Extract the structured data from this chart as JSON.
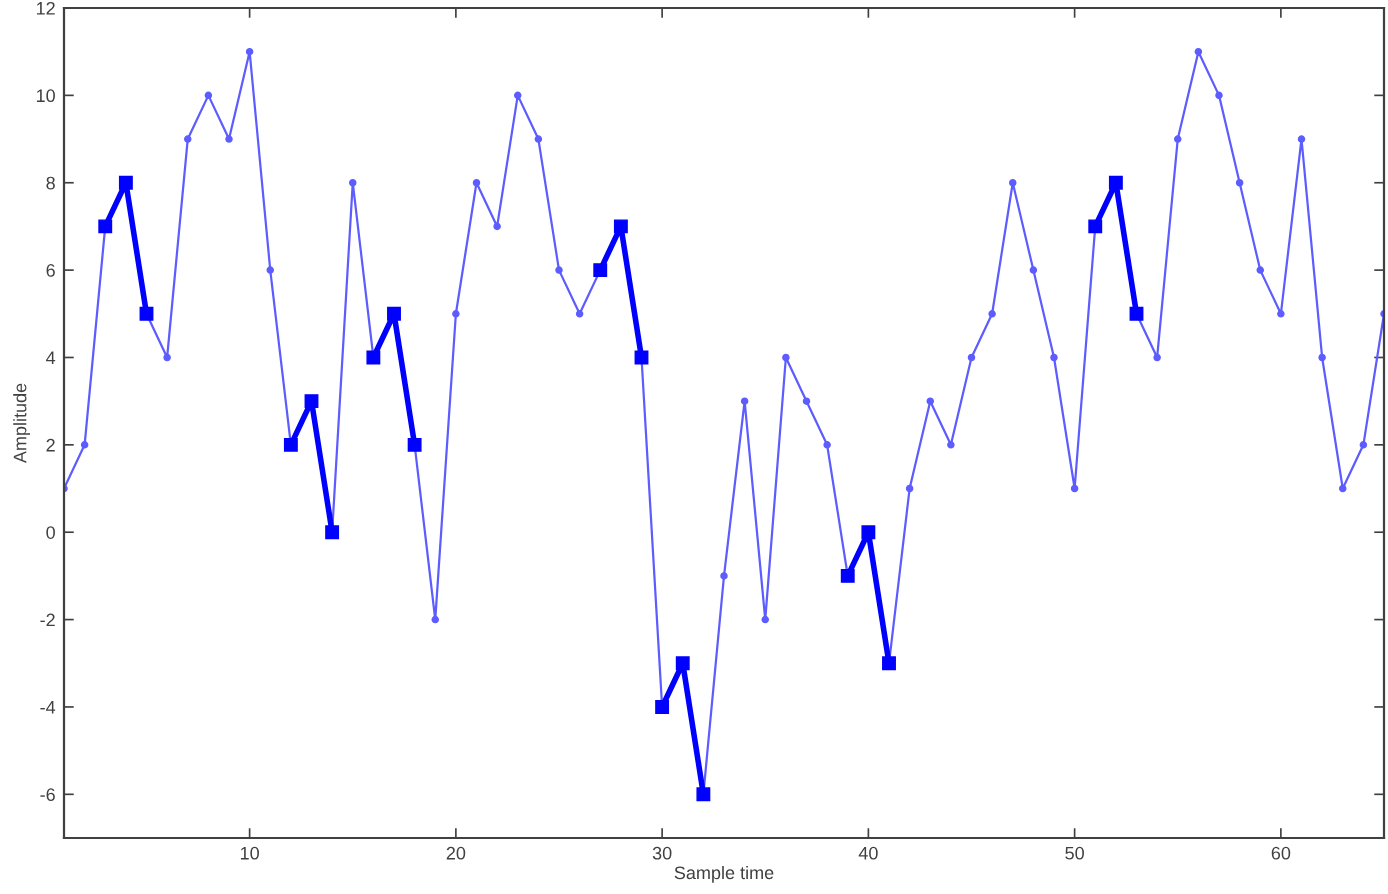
{
  "chart_data": {
    "type": "line",
    "xlabel": "Sample time",
    "ylabel": "Amplitude",
    "x": [
      1,
      2,
      3,
      4,
      5,
      6,
      7,
      8,
      9,
      10,
      11,
      12,
      13,
      14,
      15,
      16,
      17,
      18,
      19,
      20,
      21,
      22,
      23,
      24,
      25,
      26,
      27,
      28,
      29,
      30,
      31,
      32,
      33,
      34,
      35,
      36,
      37,
      38,
      39,
      40,
      41,
      42,
      43,
      44,
      45,
      46,
      47,
      48,
      49,
      50,
      51,
      52,
      53,
      54,
      55,
      56,
      57,
      58,
      59,
      60,
      61,
      62,
      63,
      64,
      65
    ],
    "xlim": [
      1,
      65
    ],
    "xticks": [
      10,
      20,
      30,
      40,
      50,
      60
    ],
    "ylim": [
      -7,
      12
    ],
    "yticks": [
      -6,
      -4,
      -2,
      0,
      2,
      4,
      6,
      8,
      10,
      12
    ],
    "series": [
      {
        "color": "#5c5cff",
        "marker": "circle",
        "values": [
          1,
          2,
          7,
          8,
          5,
          4,
          9,
          10,
          9,
          11,
          6,
          2,
          3,
          0,
          8,
          4,
          5,
          2,
          -2,
          5,
          8,
          7,
          10,
          9,
          6,
          5,
          6,
          7,
          4,
          -4,
          -3,
          -6,
          -1,
          3,
          -2,
          4,
          3,
          2,
          -1,
          0,
          -3,
          1,
          3,
          2,
          4,
          5,
          8,
          6,
          4,
          1,
          7,
          8,
          5,
          4,
          9,
          11,
          10,
          8,
          6,
          5,
          9,
          4,
          1,
          2,
          5
        ]
      },
      {
        "color": "#0000ff",
        "marker": "square",
        "x": [
          3,
          4,
          5
        ],
        "values": [
          7,
          8,
          5
        ]
      },
      {
        "color": "#0000ff",
        "marker": "square",
        "x": [
          12,
          13,
          14
        ],
        "values": [
          2,
          3,
          0
        ]
      },
      {
        "color": "#0000ff",
        "marker": "square",
        "x": [
          16,
          17,
          18
        ],
        "values": [
          4,
          5,
          2
        ]
      },
      {
        "color": "#0000ff",
        "marker": "square",
        "x": [
          27,
          28,
          29
        ],
        "values": [
          6,
          7,
          4
        ]
      },
      {
        "color": "#0000ff",
        "marker": "square",
        "x": [
          30,
          31,
          32
        ],
        "values": [
          -4,
          -3,
          -6
        ]
      },
      {
        "color": "#0000ff",
        "marker": "square",
        "x": [
          39,
          40,
          41
        ],
        "values": [
          -1,
          0,
          -3
        ]
      },
      {
        "color": "#0000ff",
        "marker": "square",
        "x": [
          51,
          52,
          53
        ],
        "values": [
          7,
          8,
          5
        ]
      }
    ]
  }
}
